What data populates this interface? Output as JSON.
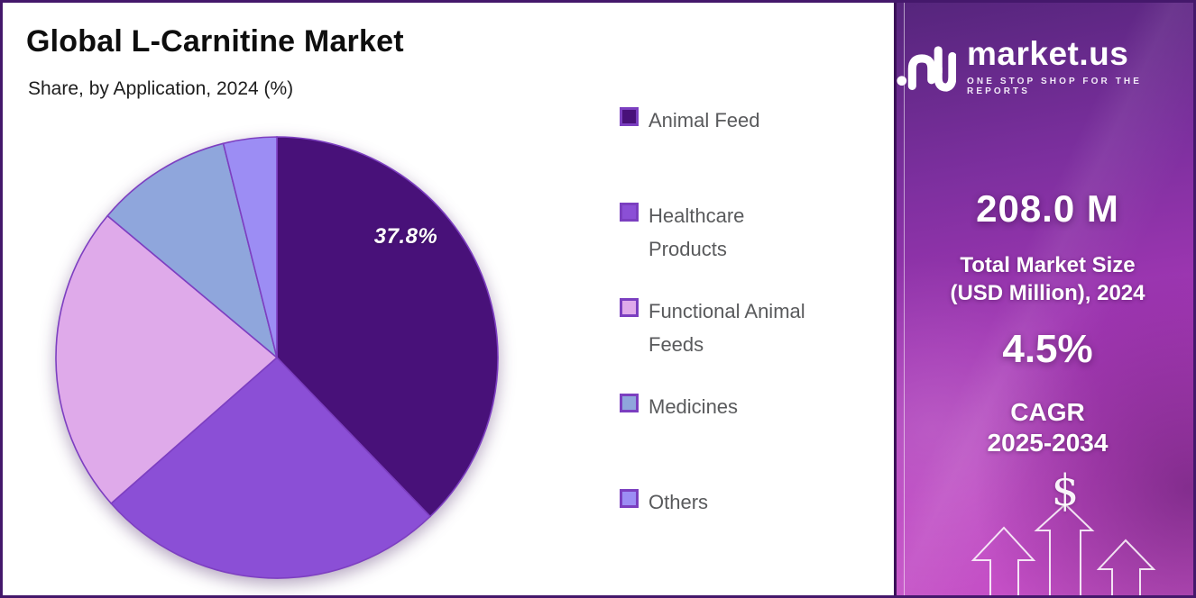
{
  "header": {
    "title": "Global L-Carnitine Market",
    "subtitle": "Share, by Application, 2024 (%)"
  },
  "chart_data": {
    "type": "pie",
    "title": "Global L-Carnitine Market Share, by Application, 2024 (%)",
    "unit": "%",
    "categories": [
      "Animal Feed",
      "Healthcare Products",
      "Functional Animal Feeds",
      "Medicines",
      "Others"
    ],
    "values": [
      37.8,
      25.7,
      22.6,
      10.0,
      3.9
    ],
    "colors": [
      "#481179",
      "#8b4fd6",
      "#dfaaea",
      "#8fa6dc",
      "#9c8df4"
    ],
    "stroke_color": "#7d3fc1",
    "start_angle_deg": 0,
    "direction": "clockwise",
    "legend_position": "right",
    "data_labels": {
      "animal_feed_pct": "37.8%"
    }
  },
  "sidebar": {
    "brand": {
      "name": "market.us",
      "tagline": "ONE STOP SHOP FOR THE REPORTS"
    },
    "market_size_value": "208.0 M",
    "market_size_label_line1": "Total Market Size",
    "market_size_label_line2": "(USD Million), 2024",
    "cagr_value": "4.5%",
    "cagr_label_line1": "CAGR",
    "cagr_label_line2": "2025-2034",
    "dollar_symbol": "$",
    "colors": {
      "gradient_top": "#55257c",
      "gradient_bottom": "#c853c8"
    }
  }
}
